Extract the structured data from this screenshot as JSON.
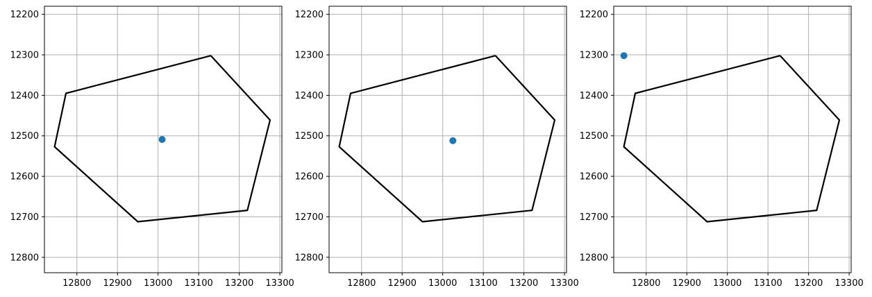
{
  "colors": {
    "grid": "#b0b0b0",
    "polygon": "#000000",
    "point": "#1f77b4",
    "axes": "#000000"
  },
  "chart_data": [
    {
      "type": "scatter",
      "title": "",
      "xlabel": "",
      "ylabel": "",
      "xlim": [
        12720,
        13305
      ],
      "ylim": [
        12838,
        12180
      ],
      "y_inverted": true,
      "grid": true,
      "xticks": [
        12800,
        12900,
        13000,
        13100,
        13200,
        13300
      ],
      "yticks": [
        12200,
        12300,
        12400,
        12500,
        12600,
        12700,
        12800
      ],
      "polygon": [
        [
          13130,
          12302
        ],
        [
          13276,
          12461
        ],
        [
          13220,
          12684
        ],
        [
          12950,
          12712
        ],
        [
          12745,
          12527
        ],
        [
          12773,
          12395
        ],
        [
          13130,
          12302
        ]
      ],
      "points": [
        [
          13010,
          12509
        ]
      ]
    },
    {
      "type": "scatter",
      "title": "",
      "xlabel": "",
      "ylabel": "",
      "xlim": [
        12720,
        13305
      ],
      "ylim": [
        12838,
        12180
      ],
      "y_inverted": true,
      "grid": true,
      "xticks": [
        12800,
        12900,
        13000,
        13100,
        13200,
        13300
      ],
      "yticks": [
        12200,
        12300,
        12400,
        12500,
        12600,
        12700,
        12800
      ],
      "polygon": [
        [
          13130,
          12302
        ],
        [
          13276,
          12461
        ],
        [
          13220,
          12684
        ],
        [
          12950,
          12712
        ],
        [
          12745,
          12527
        ],
        [
          12773,
          12395
        ],
        [
          13130,
          12302
        ]
      ],
      "points": [
        [
          13025,
          12512
        ]
      ]
    },
    {
      "type": "scatter",
      "title": "",
      "xlabel": "",
      "ylabel": "",
      "xlim": [
        12720,
        13305
      ],
      "ylim": [
        12838,
        12180
      ],
      "y_inverted": true,
      "grid": true,
      "xticks": [
        12800,
        12900,
        13000,
        13100,
        13200,
        13300
      ],
      "yticks": [
        12200,
        12300,
        12400,
        12500,
        12600,
        12700,
        12800
      ],
      "polygon": [
        [
          13130,
          12302
        ],
        [
          13276,
          12461
        ],
        [
          13220,
          12684
        ],
        [
          12950,
          12712
        ],
        [
          12745,
          12527
        ],
        [
          12773,
          12395
        ],
        [
          13130,
          12302
        ]
      ],
      "points": [
        [
          12745,
          12302
        ]
      ]
    }
  ]
}
